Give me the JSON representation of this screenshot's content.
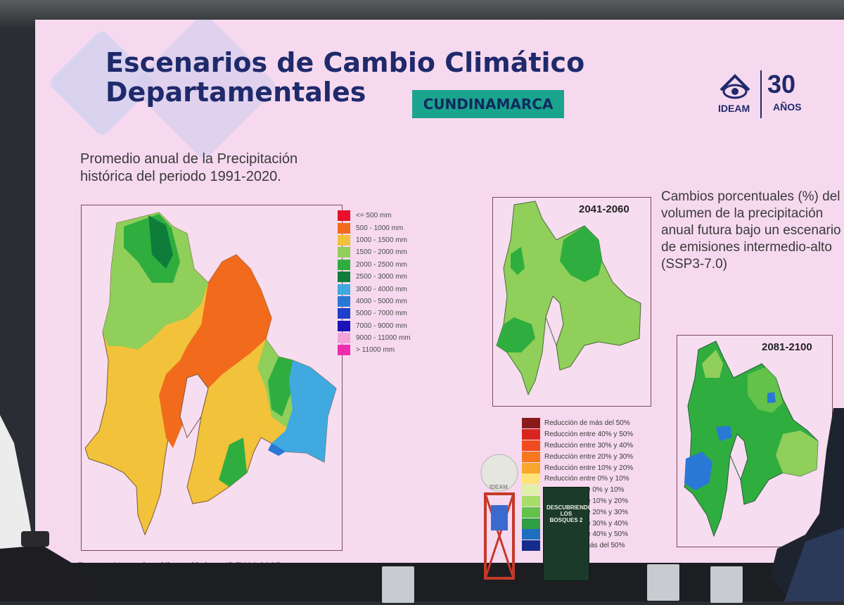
{
  "slide": {
    "title": "Escenarios de Cambio Climático Departamentales",
    "title_line1": "Escenarios de Cambio Climático",
    "title_line2": "Departamentales",
    "badge": "CUNDINAMARCA",
    "logo_name": "IDEAM",
    "logo_anniversary_number": "30",
    "logo_anniversary_word": "AÑOS",
    "subtitle_left": "Promedio anual de la Precipitación histórica del periodo 1991-2020.",
    "subtitle_right": "Cambios porcentuales (%) del volumen de la precipitación anual futura bajo un escenario de emisiones intermedio-alto (SSP3-7.0)",
    "period_1": "2041-2060",
    "period_2": "2081-2100",
    "source": "Fuente: Normales Climatológicas IDEAM 2025"
  },
  "precip_legend": [
    {
      "label": "<= 500 mm",
      "color": "#e8102a"
    },
    {
      "label": "500 - 1000 mm",
      "color": "#f26a1b"
    },
    {
      "label": "1000 - 1500 mm",
      "color": "#f2c23a"
    },
    {
      "label": "1500 - 2000 mm",
      "color": "#8fcf5a"
    },
    {
      "label": "2000 - 2500 mm",
      "color": "#2fae3f"
    },
    {
      "label": "2500 - 3000 mm",
      "color": "#0f7d3a"
    },
    {
      "label": "3000 - 4000 mm",
      "color": "#3fa9e0"
    },
    {
      "label": "4000 - 5000 mm",
      "color": "#2a78d6"
    },
    {
      "label": "5000 - 7000 mm",
      "color": "#1f3fc8"
    },
    {
      "label": "7000 - 9000 mm",
      "color": "#1a14b8"
    },
    {
      "label": "9000 - 11000 mm",
      "color": "#f3a3d8"
    },
    {
      "label": "> 11000 mm",
      "color": "#ee2cb0"
    }
  ],
  "change_legend": [
    {
      "label": "Reducción de más del 50%",
      "color": "#8b1a1a"
    },
    {
      "label": "Reducción entre 40% y 50%",
      "color": "#d8261e"
    },
    {
      "label": "Reducción entre 30% y 40%",
      "color": "#f04b1e"
    },
    {
      "label": "Reducción entre 20% y 30%",
      "color": "#f7771f"
    },
    {
      "label": "Reducción entre 10% y 20%",
      "color": "#f9a72c"
    },
    {
      "label": "Reducción entre 0% y 10%",
      "color": "#fde27a"
    },
    {
      "label": "Aumento entre 0% y 10%",
      "color": "#dff0a8"
    },
    {
      "label": "Aumento entre 10% y 20%",
      "color": "#a9dd6a"
    },
    {
      "label": "Aumento entre 20% y 30%",
      "color": "#62c24a"
    },
    {
      "label": "Aumento entre 30% y 40%",
      "color": "#2f9e44"
    },
    {
      "label": "Aumento entre 40% y 50%",
      "color": "#1f6fbf"
    },
    {
      "label": "Aumento de más del 50%",
      "color": "#142d8c"
    }
  ],
  "foreground": {
    "book_title": "DESCUBRIENDO LOS BOSQUES 2",
    "trophy_label": "IDEAM"
  },
  "colors": {
    "screen_bg": "#f6d9ef",
    "title": "#1f2a6b",
    "badge_bg": "#1aa48d"
  }
}
